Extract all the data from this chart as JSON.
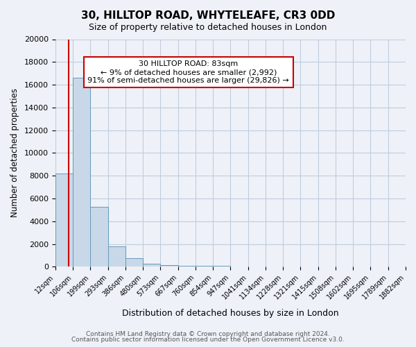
{
  "title": "30, HILLTOP ROAD, WHYTELEAFE, CR3 0DD",
  "subtitle": "Size of property relative to detached houses in London",
  "xlabel": "Distribution of detached houses by size in London",
  "ylabel": "Number of detached properties",
  "bin_labels": [
    "12sqm",
    "106sqm",
    "199sqm",
    "293sqm",
    "386sqm",
    "480sqm",
    "573sqm",
    "667sqm",
    "760sqm",
    "854sqm",
    "947sqm",
    "1041sqm",
    "1134sqm",
    "1228sqm",
    "1321sqm",
    "1415sqm",
    "1508sqm",
    "1602sqm",
    "1695sqm",
    "1789sqm",
    "1882sqm"
  ],
  "bar_values": [
    8200,
    16600,
    5300,
    1800,
    750,
    280,
    150,
    100,
    80,
    60,
    50,
    40,
    30,
    25,
    20,
    15,
    10,
    8,
    5,
    3
  ],
  "bar_color": "#c8d8e8",
  "bar_edge_color": "#6699bb",
  "ylim": [
    0,
    20000
  ],
  "yticks": [
    0,
    2000,
    4000,
    6000,
    8000,
    10000,
    12000,
    14000,
    16000,
    18000,
    20000
  ],
  "property_line_x": 83,
  "property_line_label": "30 HILLTOP ROAD: 83sqm",
  "annotation_line1": "← 9% of detached houses are smaller (2,992)",
  "annotation_line2": "91% of semi-detached houses are larger (29,826) →",
  "annotation_box_color": "#ffffff",
  "annotation_box_edge": "#cc0000",
  "red_line_color": "#cc0000",
  "grid_color": "#c0ccdd",
  "bg_color": "#eef2f8",
  "footer1": "Contains HM Land Registry data © Crown copyright and database right 2024.",
  "footer2": "Contains public sector information licensed under the Open Government Licence v3.0."
}
